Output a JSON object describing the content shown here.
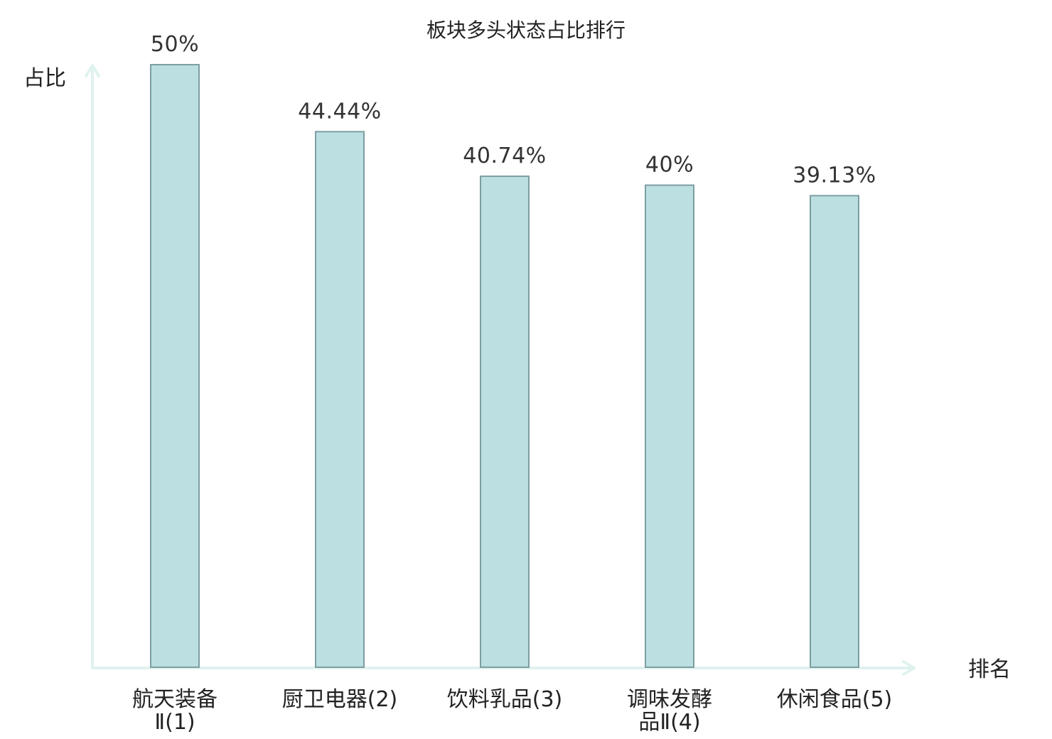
{
  "chart_data": {
    "type": "bar",
    "title": "板块多头状态占比排行",
    "ylabel": "占比",
    "xlabel": "排名",
    "categories": [
      [
        "航天装备",
        "Ⅱ(1)"
      ],
      [
        "厨卫电器(2)"
      ],
      [
        "饮料乳品(3)"
      ],
      [
        "调味发酵",
        "品Ⅱ(4)"
      ],
      [
        "休闲食品(5)"
      ]
    ],
    "values": [
      50,
      44.44,
      40.74,
      40,
      39.13
    ],
    "value_labels": [
      "50%",
      "44.44%",
      "40.74%",
      "40%",
      "39.13%"
    ],
    "highlight_index": 4,
    "colors": {
      "bar_fill": "#bce0e2",
      "bar_stroke": "#7d9ea2",
      "axis": "#e0f2ef",
      "text": "#222222",
      "value_text": "#333333",
      "highlight": "#ff0000"
    },
    "ylim": [
      0,
      50
    ],
    "grid": false,
    "legend": "none"
  }
}
